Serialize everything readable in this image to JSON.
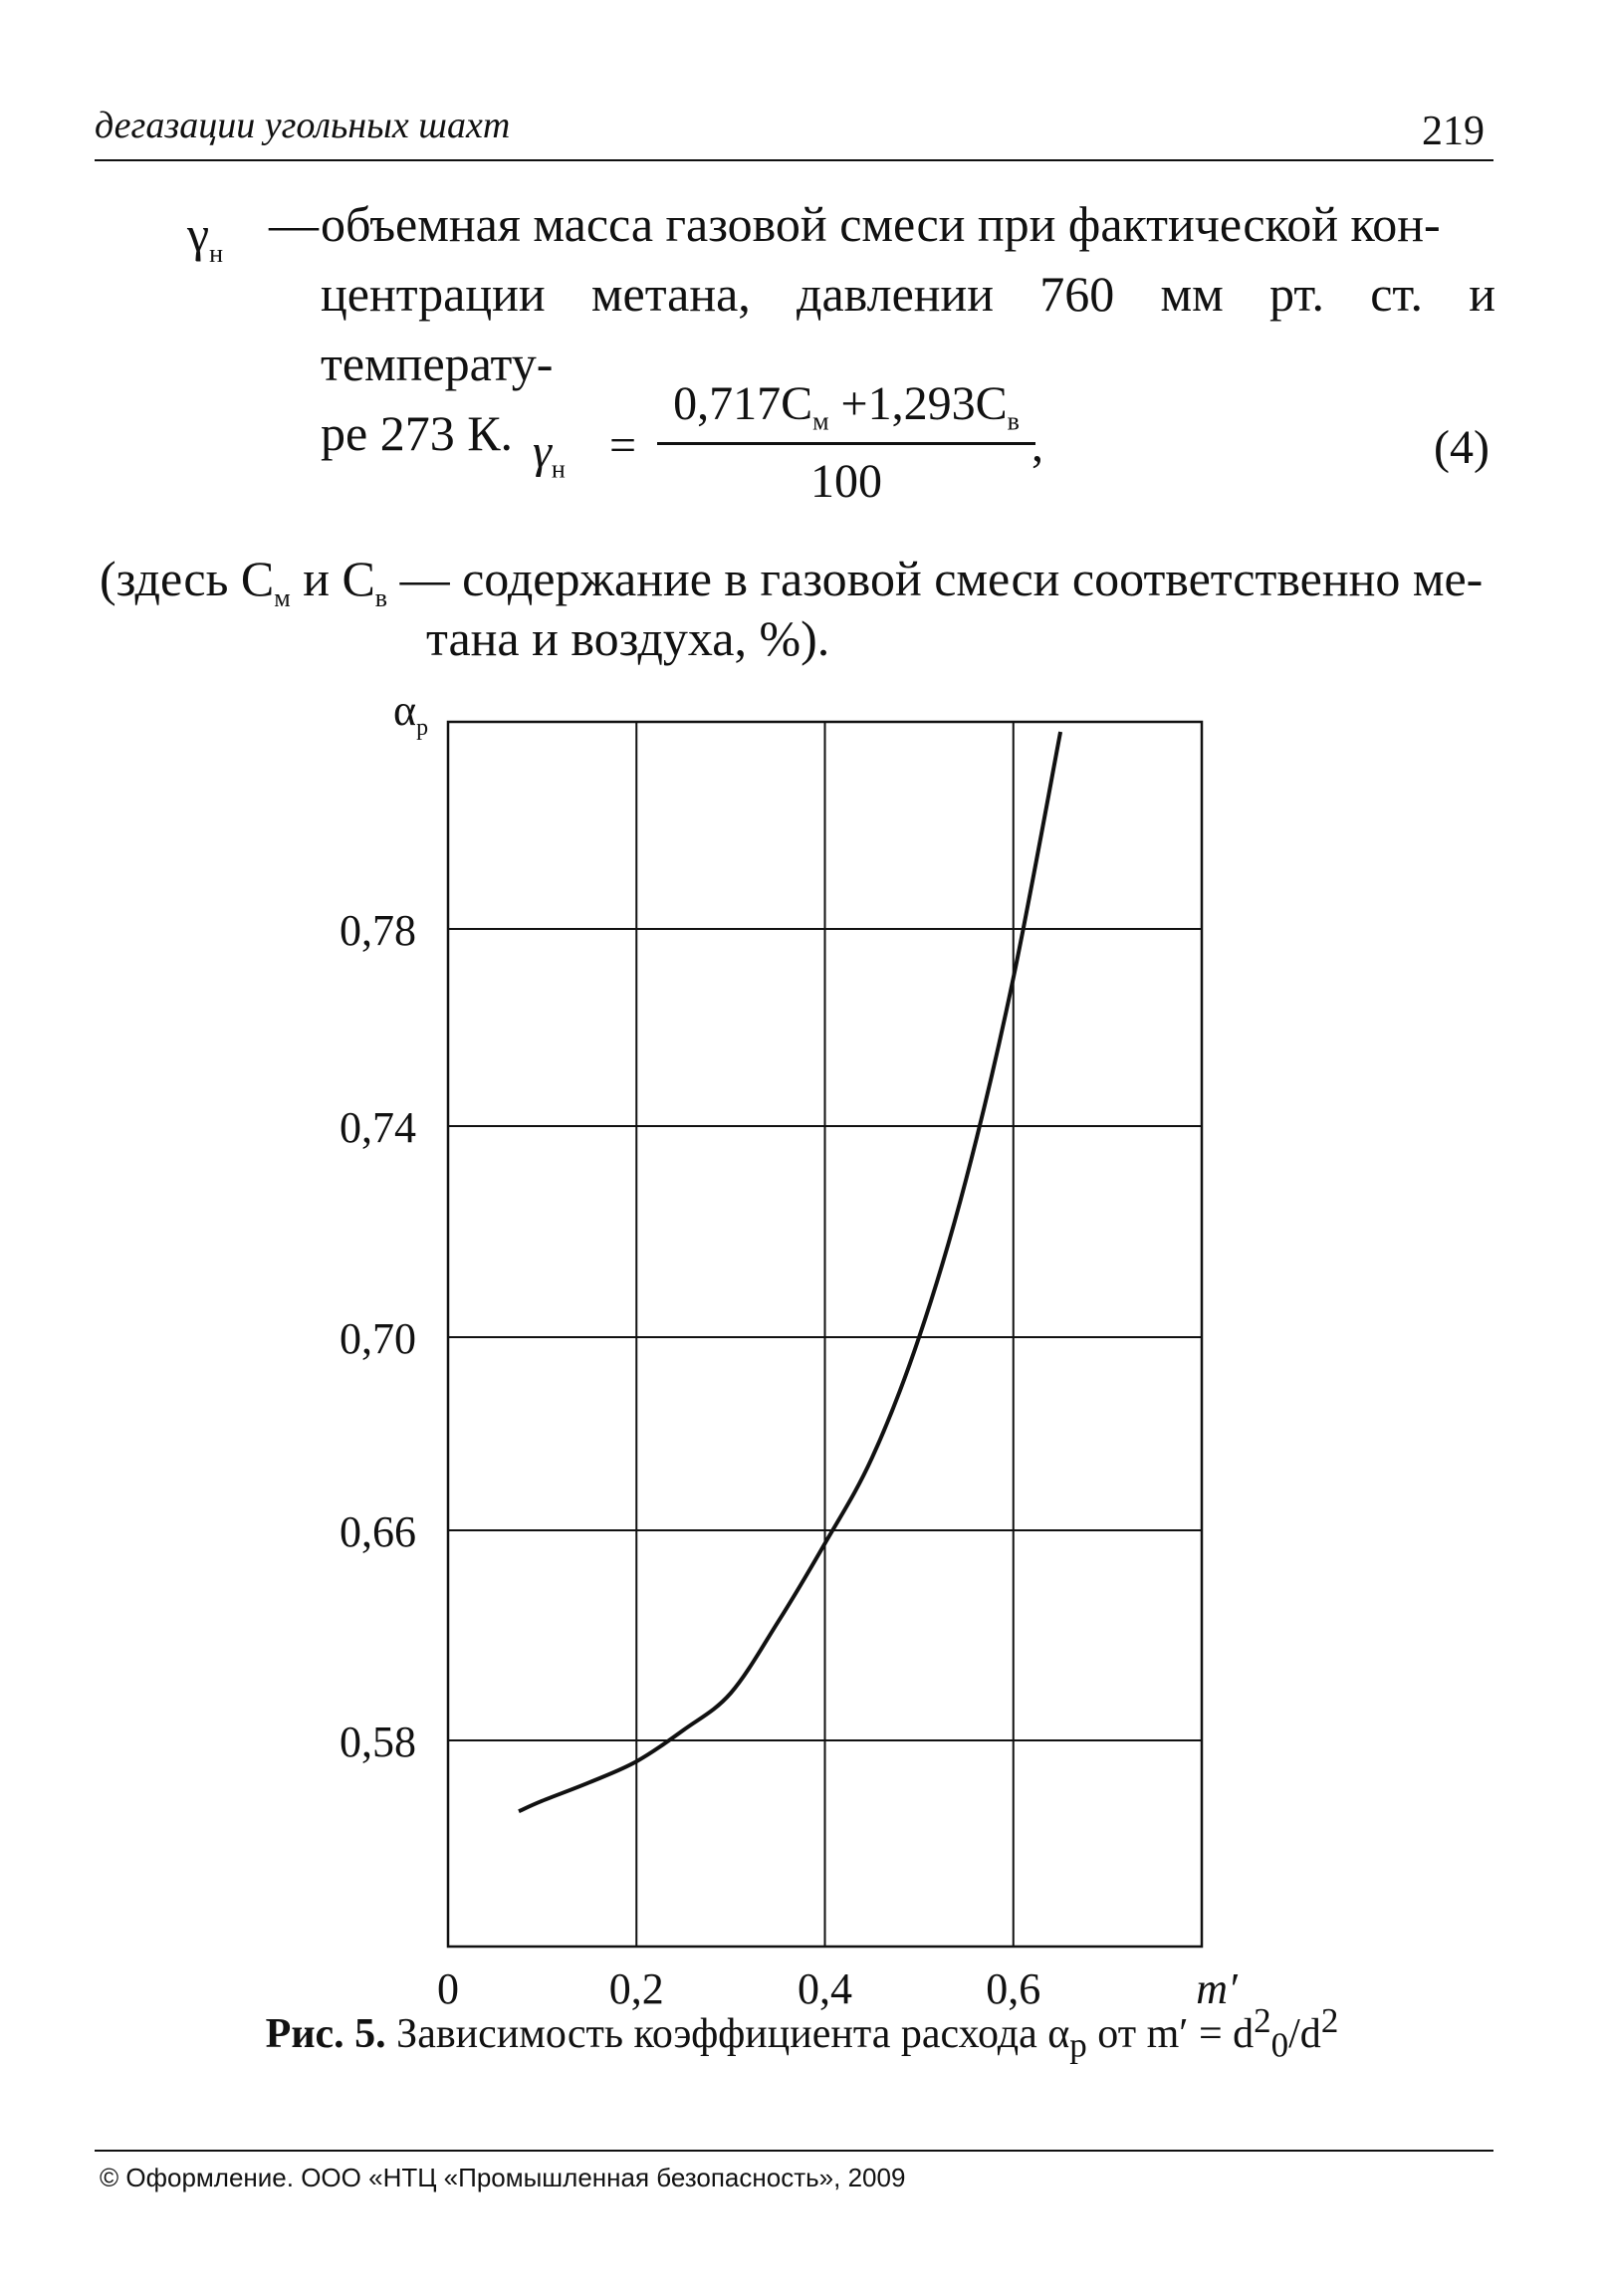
{
  "header": {
    "title": "дегазации угольных шахт",
    "page_number": "219"
  },
  "definition": {
    "symbol": "γ",
    "symbol_sub": "н",
    "dash": "—",
    "lines": [
      "объемная масса газовой смеси при фактической кон-",
      "центрации метана, давлении 760 мм рт. ст. и температу-",
      "ре 273 К."
    ]
  },
  "formula": {
    "lhs": "γ",
    "lhs_sub": "н",
    "eq": "=",
    "num_a": "0,717C",
    "num_a_sub": "м",
    "num_b": " +1,293C",
    "num_b_sub": "в",
    "denominator": "100",
    "comma": ",",
    "label": "(4)"
  },
  "note": {
    "p1": "(здесь C",
    "sub1": "м",
    "p2": " и C",
    "sub2": "в",
    "p3": " — содержание в газовой смеси соответственно ме-",
    "line2": "тана и воздуха, %)."
  },
  "chart_data": {
    "type": "line",
    "title": "",
    "ylabel": "α",
    "ylabel_sub": "р",
    "xlabel": "m′",
    "xticks": [
      "0",
      "0,2",
      "0,4",
      "0,6"
    ],
    "xtick_values": [
      0,
      0.2,
      0.4,
      0.6
    ],
    "yticks": [
      "0,58",
      "0,66",
      "0,70",
      "0,74",
      "0,78"
    ],
    "xlim": [
      0,
      0.8
    ],
    "grid": true,
    "series": [
      {
        "x": [
          0.075,
          0.1,
          0.15,
          0.2,
          0.25,
          0.3,
          0.35,
          0.4,
          0.45,
          0.5,
          0.55,
          0.6,
          0.65
        ],
        "y": [
          0.553,
          0.557,
          0.564,
          0.572,
          0.584,
          0.598,
          0.625,
          0.655,
          0.675,
          0.7,
          0.73,
          0.77,
          0.82
        ]
      }
    ]
  },
  "caption": {
    "fig": "Рис. 5.",
    "text": " Зависимость коэффициента расхода α",
    "text_sub": "р",
    "text2": " от m′ = d",
    "sup1": "2",
    "sub0": "0",
    "text3": "/d",
    "sup2": "2"
  },
  "footer": {
    "text": "© Оформление. ООО «НТЦ «Промышленная безопасность», 2009"
  }
}
